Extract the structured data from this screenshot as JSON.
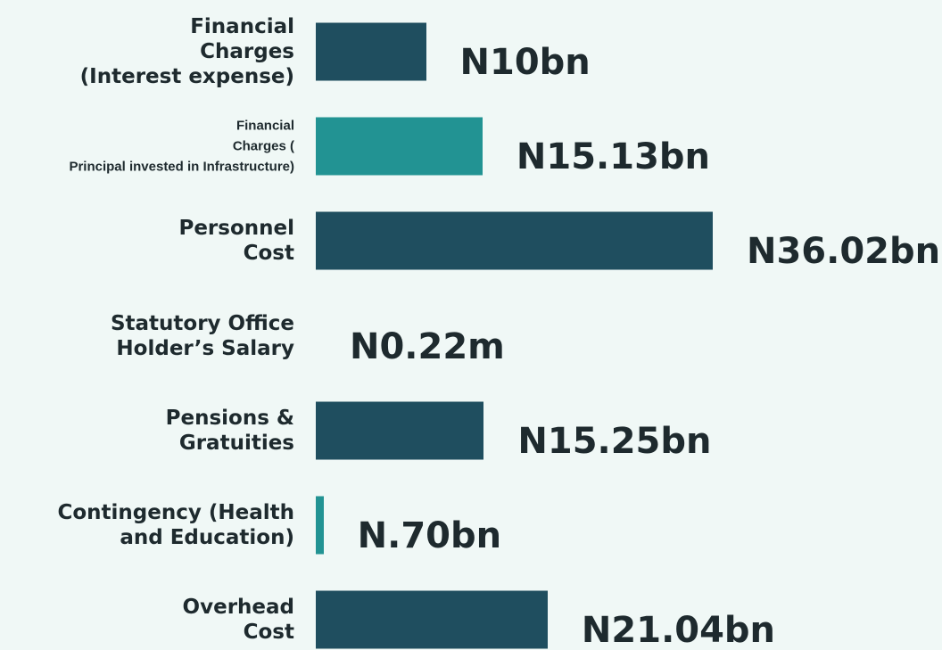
{
  "chart_data": {
    "type": "bar",
    "orientation": "horizontal",
    "categories": [
      "Financial\nCharges\n(Interest expense)",
      "Financial\nCharges (\nPrincipal invested in Infrastructure)",
      "Personnel\nCost",
      "Statutory Office\nHolder’s Salary",
      "Pensions &\nGratuities",
      "Contingency (Health\nand Education)",
      "Overhead\nCost"
    ],
    "values": [
      10,
      15.13,
      36.02,
      0.00022,
      15.25,
      0.7,
      21.04
    ],
    "value_labels": [
      "N10bn",
      "N15.13bn",
      "N36.02bn",
      "N0.22m",
      "N15.25bn",
      "N.70bn",
      "N21.04bn"
    ],
    "colors": [
      "#1f4e5f",
      "#229393",
      "#1f4e5f",
      "#229393",
      "#1f4e5f",
      "#229393",
      "#1f4e5f"
    ]
  }
}
